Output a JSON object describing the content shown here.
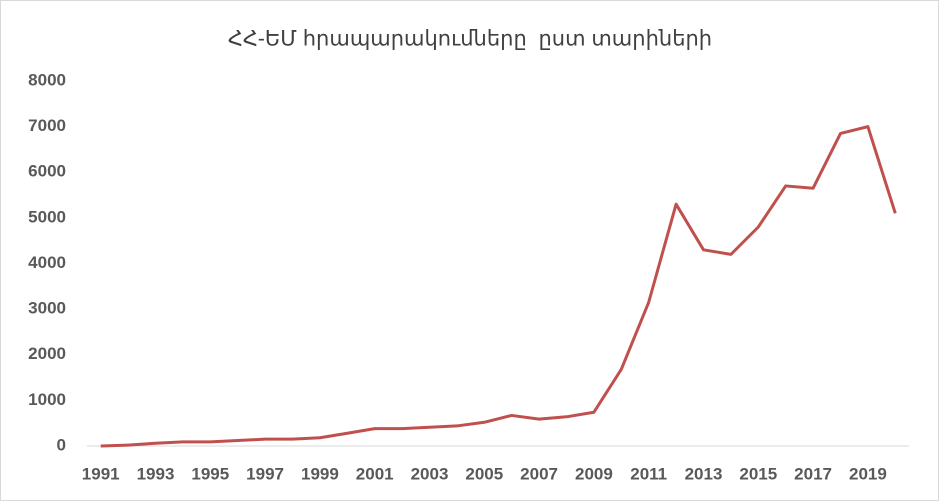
{
  "chart_data": {
    "type": "line",
    "title": "ՀՀ-ԵՄ հրապարակումները  ըստ տարիների",
    "x": [
      1991,
      1992,
      1993,
      1994,
      1995,
      1996,
      1997,
      1998,
      1999,
      2000,
      2001,
      2002,
      2003,
      2004,
      2005,
      2006,
      2007,
      2008,
      2009,
      2010,
      2011,
      2012,
      2013,
      2014,
      2015,
      2016,
      2017,
      2018,
      2019,
      2020
    ],
    "series": [
      {
        "name": "ՀՀ-ԵՄ",
        "color": "#c0504d",
        "values": [
          0,
          20,
          60,
          90,
          90,
          120,
          150,
          150,
          180,
          280,
          380,
          380,
          410,
          440,
          520,
          670,
          590,
          640,
          740,
          1680,
          3150,
          5300,
          4300,
          4200,
          4800,
          5700,
          5650,
          6850,
          7000,
          5100
        ]
      }
    ],
    "xlim": [
      1990.5,
      2020.5
    ],
    "xticks": [
      1991,
      1993,
      1995,
      1997,
      1999,
      2001,
      2003,
      2005,
      2007,
      2009,
      2011,
      2013,
      2015,
      2017,
      2019
    ],
    "ylim": [
      0,
      8000
    ],
    "yticks": [
      0,
      1000,
      2000,
      3000,
      4000,
      5000,
      6000,
      7000,
      8000
    ],
    "grid": false,
    "legend": false
  }
}
